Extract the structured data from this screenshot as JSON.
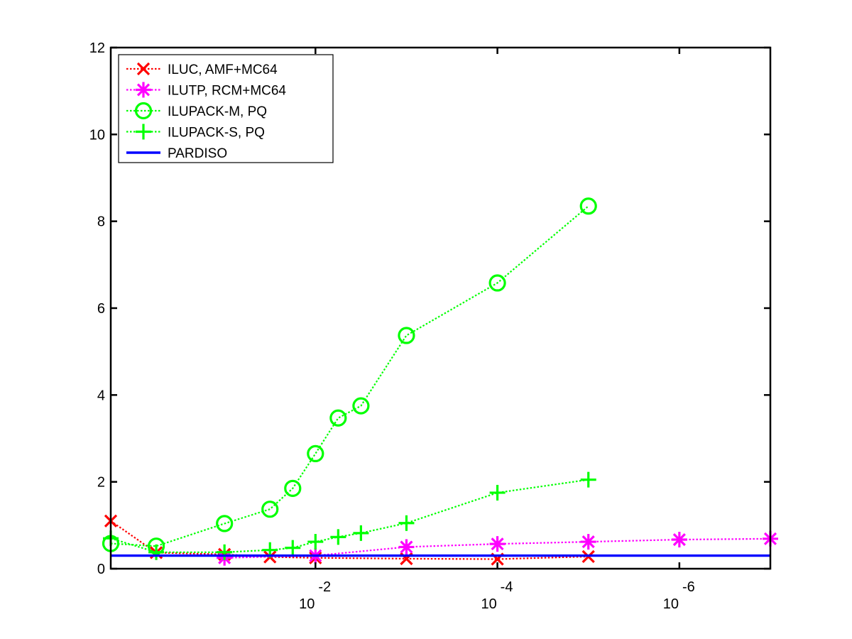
{
  "chart_data": {
    "type": "line",
    "x_scale": "log",
    "x_reversed": true,
    "xlim": [
      1.778,
      1e-07
    ],
    "ylim": [
      0,
      12
    ],
    "xticks": [
      {
        "value": 0.01,
        "base": "10",
        "exp": "-2"
      },
      {
        "value": 0.0001,
        "base": "10",
        "exp": "-4"
      },
      {
        "value": 1e-06,
        "base": "10",
        "exp": "-6"
      }
    ],
    "yticks": [
      "0",
      "2",
      "4",
      "6",
      "8",
      "10",
      "12"
    ],
    "grid": false,
    "legend_position": "top-left",
    "series": [
      {
        "name": "ILUC, AMF+MC64",
        "color": "#ff0000",
        "marker": "x",
        "line": "dotted",
        "points": [
          {
            "x": 1.778,
            "y": 1.1
          },
          {
            "x": 0.5623,
            "y": 0.37
          },
          {
            "x": 0.1,
            "y": 0.33
          },
          {
            "x": 0.03162,
            "y": 0.27
          },
          {
            "x": 0.01,
            "y": 0.25
          },
          {
            "x": 0.001,
            "y": 0.23
          },
          {
            "x": 0.0001,
            "y": 0.22
          },
          {
            "x": 1e-05,
            "y": 0.28
          }
        ]
      },
      {
        "name": "ILUTP, RCM+MC64",
        "color": "#ff00ff",
        "marker": "asterisk",
        "line": "dotted",
        "points": [
          {
            "x": 0.1,
            "y": 0.25
          },
          {
            "x": 0.01,
            "y": 0.3
          },
          {
            "x": 0.001,
            "y": 0.5
          },
          {
            "x": 0.0001,
            "y": 0.57
          },
          {
            "x": 1e-05,
            "y": 0.62
          },
          {
            "x": 1e-06,
            "y": 0.67
          },
          {
            "x": 1e-07,
            "y": 0.69
          }
        ]
      },
      {
        "name": "ILUPACK-M, PQ",
        "color": "#00ff00",
        "marker": "circle",
        "line": "dotted",
        "points": [
          {
            "x": 1.778,
            "y": 0.58
          },
          {
            "x": 0.5623,
            "y": 0.52
          },
          {
            "x": 0.1,
            "y": 1.04
          },
          {
            "x": 0.03162,
            "y": 1.37
          },
          {
            "x": 0.01778,
            "y": 1.85
          },
          {
            "x": 0.01,
            "y": 2.65
          },
          {
            "x": 0.005623,
            "y": 3.47
          },
          {
            "x": 0.003162,
            "y": 3.75
          },
          {
            "x": 0.001,
            "y": 5.37
          },
          {
            "x": 0.0001,
            "y": 6.58
          },
          {
            "x": 1e-05,
            "y": 8.35
          }
        ]
      },
      {
        "name": "ILUPACK-S, PQ",
        "color": "#00ff00",
        "marker": "plus",
        "line": "dotted",
        "points": [
          {
            "x": 1.778,
            "y": 0.7
          },
          {
            "x": 0.5623,
            "y": 0.38
          },
          {
            "x": 0.1,
            "y": 0.38
          },
          {
            "x": 0.03162,
            "y": 0.43
          },
          {
            "x": 0.01778,
            "y": 0.48
          },
          {
            "x": 0.01,
            "y": 0.62
          },
          {
            "x": 0.005623,
            "y": 0.73
          },
          {
            "x": 0.003162,
            "y": 0.82
          },
          {
            "x": 0.001,
            "y": 1.05
          },
          {
            "x": 0.0001,
            "y": 1.75
          },
          {
            "x": 1e-05,
            "y": 2.05
          }
        ]
      },
      {
        "name": "PARDISO",
        "color": "#0000ff",
        "marker": "none",
        "line": "solid",
        "points": [
          {
            "x": 1.778,
            "y": 0.3
          },
          {
            "x": 1e-07,
            "y": 0.3
          }
        ]
      }
    ]
  }
}
